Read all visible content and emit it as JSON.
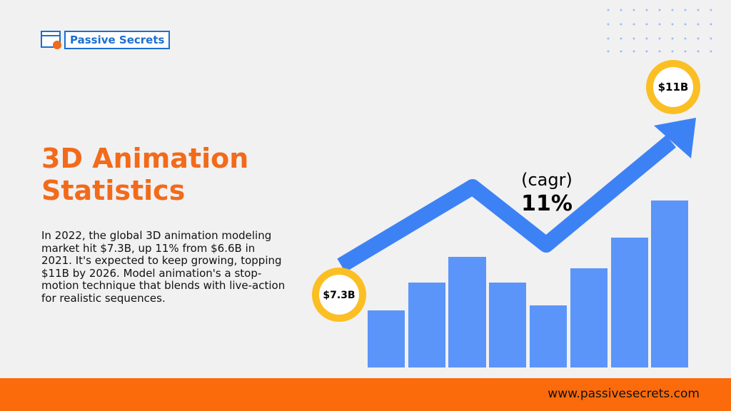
{
  "logo": {
    "text": "Passive Secrets"
  },
  "header": {
    "title_line1": "3D Animation",
    "title_line2": "Statistics"
  },
  "body": {
    "paragraph": "In 2022, the global 3D animation modeling market hit $7.3B, up 11% from $6.6B in 2021. It's expected to keep growing, topping $11B by 2026. Model animation's a stop-motion technique that blends with live-action for realistic sequences."
  },
  "graphic": {
    "cagr_label": "(cagr)",
    "cagr_value": "11%",
    "start_badge": "$7.3B",
    "end_badge": "$11B"
  },
  "footer": {
    "website": "www.passivesecrets.com"
  }
}
